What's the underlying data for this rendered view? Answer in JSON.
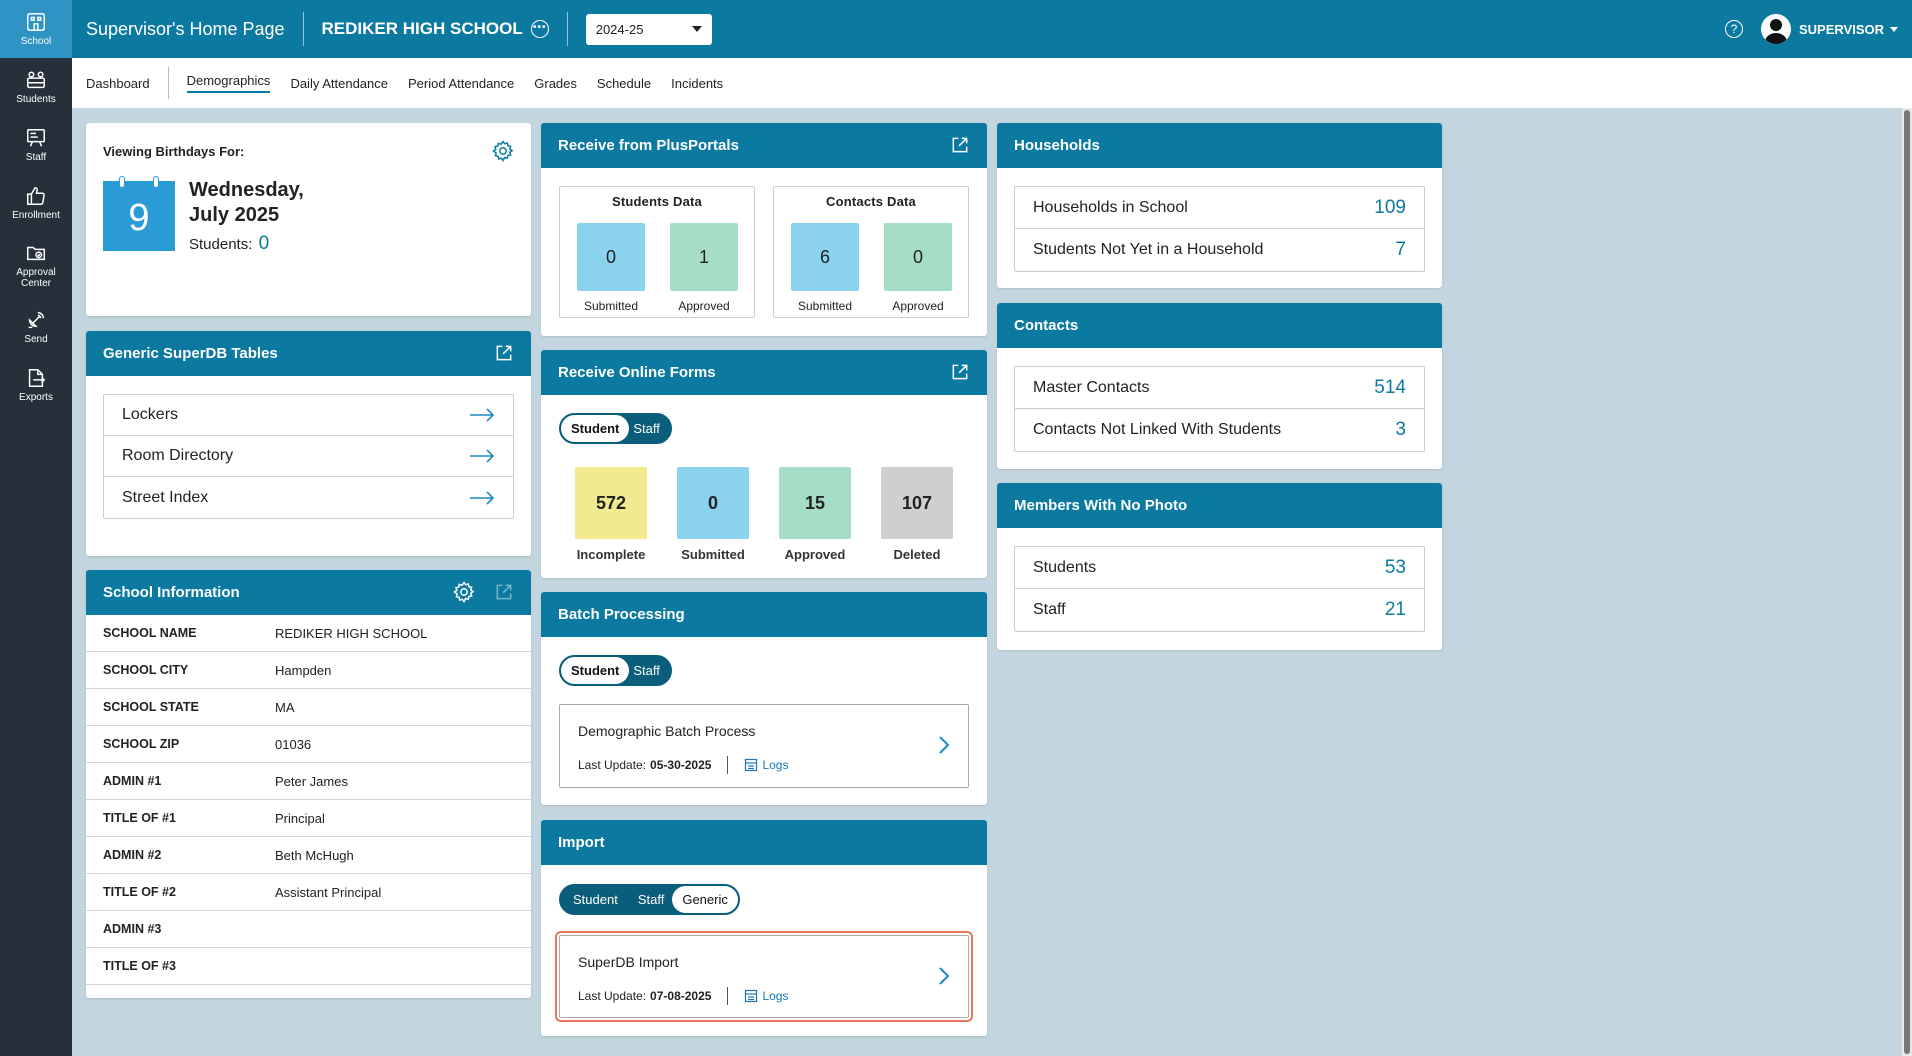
{
  "rail": {
    "items": [
      {
        "label": "School",
        "icon": "building-icon"
      },
      {
        "label": "Students",
        "icon": "students-icon"
      },
      {
        "label": "Staff",
        "icon": "staff-icon"
      },
      {
        "label": "Enrollment",
        "icon": "thumbs-up-icon"
      },
      {
        "label": "Approval Center",
        "icon": "folder-check-icon"
      },
      {
        "label": "Send",
        "icon": "satellite-icon"
      },
      {
        "label": "Exports",
        "icon": "export-file-icon"
      }
    ]
  },
  "header": {
    "title": "Supervisor's Home Page",
    "school": "REDIKER HIGH SCHOOL",
    "year": "2024-25",
    "user": "SUPERVISOR",
    "help": "?"
  },
  "tabs": [
    "Dashboard",
    "Demographics",
    "Daily Attendance",
    "Period Attendance",
    "Grades",
    "Schedule",
    "Incidents"
  ],
  "birthday": {
    "label": "Viewing Birthdays For:",
    "day": "9",
    "date_line1": "Wednesday,",
    "date_line2": "July 2025",
    "students_label": "Students:",
    "students_count": "0"
  },
  "superdb": {
    "title": "Generic SuperDB Tables",
    "items": [
      "Lockers",
      "Room Directory",
      "Street Index"
    ]
  },
  "school_info": {
    "title": "School Information",
    "rows": [
      {
        "k": "SCHOOL NAME",
        "v": "REDIKER HIGH SCHOOL"
      },
      {
        "k": "SCHOOL CITY",
        "v": "Hampden"
      },
      {
        "k": "SCHOOL STATE",
        "v": "MA"
      },
      {
        "k": "SCHOOL ZIP",
        "v": "01036"
      },
      {
        "k": "ADMIN #1",
        "v": "Peter James"
      },
      {
        "k": "TITLE OF #1",
        "v": "Principal"
      },
      {
        "k": "ADMIN #2",
        "v": "Beth McHugh"
      },
      {
        "k": "TITLE OF #2",
        "v": "Assistant Principal"
      },
      {
        "k": "ADMIN #3",
        "v": ""
      },
      {
        "k": "TITLE OF #3",
        "v": ""
      }
    ]
  },
  "plusportals": {
    "title": "Receive from PlusPortals",
    "students": {
      "title": "Students Data",
      "submitted": "0",
      "approved": "1"
    },
    "contacts": {
      "title": "Contacts Data",
      "submitted": "6",
      "approved": "0"
    },
    "submitted_label": "Submitted",
    "approved_label": "Approved"
  },
  "online_forms": {
    "title": "Receive Online Forms",
    "toggle": [
      "Student",
      "Staff"
    ],
    "stats": [
      {
        "value": "572",
        "label": "Incomplete"
      },
      {
        "value": "0",
        "label": "Submitted"
      },
      {
        "value": "15",
        "label": "Approved"
      },
      {
        "value": "107",
        "label": "Deleted"
      }
    ]
  },
  "batch": {
    "title": "Batch Processing",
    "toggle": [
      "Student",
      "Staff"
    ],
    "card_title": "Demographic Batch Process",
    "update_label": "Last Update:",
    "update_date": "05-30-2025",
    "logs": "Logs"
  },
  "import": {
    "title": "Import",
    "toggle": [
      "Student",
      "Staff",
      "Generic"
    ],
    "card_title": "SuperDB Import",
    "update_label": "Last Update:",
    "update_date": "07-08-2025",
    "logs": "Logs"
  },
  "households": {
    "title": "Households",
    "rows": [
      {
        "label": "Households in School",
        "value": "109"
      },
      {
        "label": "Students Not Yet in a Household",
        "value": "7"
      }
    ]
  },
  "contacts": {
    "title": "Contacts",
    "rows": [
      {
        "label": "Master Contacts",
        "value": "514"
      },
      {
        "label": "Contacts Not Linked With Students",
        "value": "3"
      }
    ]
  },
  "no_photo": {
    "title": "Members With No Photo",
    "rows": [
      {
        "label": "Students",
        "value": "53"
      },
      {
        "label": "Staff",
        "value": "21"
      }
    ]
  }
}
